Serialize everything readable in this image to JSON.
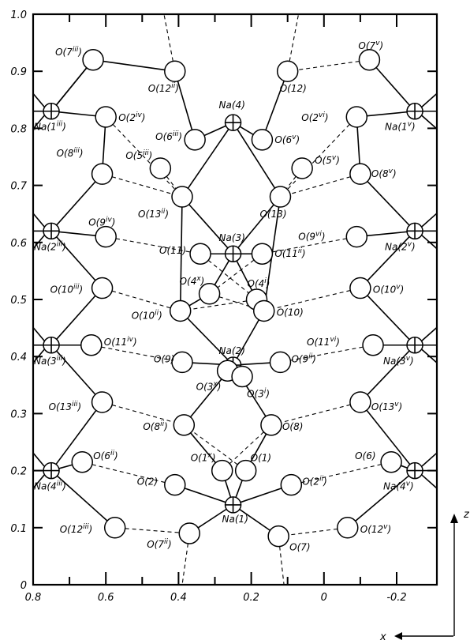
{
  "axes": {
    "x_label": "x",
    "z_label": "z",
    "x_ticks": [
      "0.8",
      "0.6",
      "0.4",
      "0.2",
      "0",
      "-0.2"
    ],
    "x_tick_values": [
      0.8,
      0.6,
      0.4,
      0.2,
      0,
      -0.2
    ],
    "z_ticks": [
      "0",
      "0.1",
      "0.2",
      "0.3",
      "0.4",
      "0.5",
      "0.6",
      "0.7",
      "0.8",
      "0.9",
      "1.0"
    ],
    "z_tick_values": [
      0,
      0.1,
      0.2,
      0.3,
      0.4,
      0.5,
      0.6,
      0.7,
      0.8,
      0.9,
      1.0
    ],
    "x_range": [
      0.8,
      -0.27
    ],
    "z_range": [
      0,
      1.0
    ]
  },
  "atoms": [
    {
      "id": "Na1iii",
      "type": "Na",
      "x": 0.75,
      "z": 0.83,
      "label": "Na(1",
      "sup": "iii",
      "close": ")"
    },
    {
      "id": "Na2iii",
      "type": "Na",
      "x": 0.75,
      "z": 0.62,
      "label": "Na(2",
      "sup": "iii",
      "close": ")"
    },
    {
      "id": "Na3iii",
      "type": "Na",
      "x": 0.75,
      "z": 0.42,
      "label": "Na(3",
      "sup": "iii",
      "close": ")"
    },
    {
      "id": "Na4iii",
      "type": "Na",
      "x": 0.75,
      "z": 0.2,
      "label": "Na(4",
      "sup": "iii",
      "close": ")"
    },
    {
      "id": "Na1v",
      "type": "Na",
      "x": -0.25,
      "z": 0.83,
      "label": "Na(1",
      "sup": "v",
      "close": ")"
    },
    {
      "id": "Na2v",
      "type": "Na",
      "x": -0.25,
      "z": 0.62,
      "label": "Na(2",
      "sup": "v",
      "close": ")"
    },
    {
      "id": "Na3v",
      "type": "Na",
      "x": -0.25,
      "z": 0.42,
      "label": "Na(3",
      "sup": "v",
      "close": ")"
    },
    {
      "id": "Na4v",
      "type": "Na",
      "x": -0.25,
      "z": 0.2,
      "label": "Na(4",
      "sup": "v",
      "close": ")"
    },
    {
      "id": "Na4",
      "type": "Na",
      "x": 0.25,
      "z": 0.81,
      "label": "Na(4)",
      "sup": "",
      "close": ""
    },
    {
      "id": "Na3",
      "type": "Na",
      "x": 0.25,
      "z": 0.58,
      "label": "Na(3)",
      "sup": "",
      "close": ""
    },
    {
      "id": "Na2",
      "type": "Na",
      "x": 0.25,
      "z": 0.385,
      "label": "Na(2)",
      "sup": "",
      "close": ""
    },
    {
      "id": "Na1",
      "type": "Na",
      "x": 0.25,
      "z": 0.14,
      "label": "Na(1)",
      "sup": "",
      "close": ""
    },
    {
      "id": "O7iii",
      "type": "O",
      "x": 0.635,
      "z": 0.92,
      "label": "O(7",
      "sup": "iii",
      "close": ")"
    },
    {
      "id": "O12ii",
      "type": "O",
      "x": 0.41,
      "z": 0.9,
      "label": "O(12",
      "sup": "ii",
      "close": ")"
    },
    {
      "id": "O12",
      "type": "O",
      "x": 0.1,
      "z": 0.9,
      "label": "O(12)",
      "sup": "",
      "close": ""
    },
    {
      "id": "O7v",
      "type": "O",
      "x": -0.125,
      "z": 0.92,
      "label": "O(7",
      "sup": "v",
      "close": ")"
    },
    {
      "id": "O2iv",
      "type": "O",
      "x": 0.6,
      "z": 0.82,
      "label": "O(2",
      "sup": "iv",
      "close": ")"
    },
    {
      "id": "O2vi",
      "type": "O",
      "x": -0.09,
      "z": 0.82,
      "label": "O(2",
      "sup": "vi",
      "close": ")"
    },
    {
      "id": "O6iii",
      "type": "O",
      "x": 0.355,
      "z": 0.78,
      "label": "O(6",
      "sup": "iii",
      "close": ")"
    },
    {
      "id": "O6v",
      "type": "O",
      "x": 0.17,
      "z": 0.78,
      "label": "O(6",
      "sup": "v",
      "close": ")"
    },
    {
      "id": "O5iii",
      "type": "O",
      "x": 0.45,
      "z": 0.73,
      "label": "O(5",
      "sup": "iii",
      "close": ")"
    },
    {
      "id": "O5v",
      "type": "O",
      "x": 0.06,
      "z": 0.73,
      "label": "O(5",
      "sup": "v",
      "close": ")"
    },
    {
      "id": "O8iii",
      "type": "O",
      "x": 0.61,
      "z": 0.72,
      "label": "O(8",
      "sup": "iii",
      "close": ")"
    },
    {
      "id": "O8v",
      "type": "O",
      "x": -0.1,
      "z": 0.72,
      "label": "O(8",
      "sup": "v",
      "close": ")"
    },
    {
      "id": "O13ii",
      "type": "O",
      "x": 0.39,
      "z": 0.68,
      "label": "O(13",
      "sup": "ii",
      "close": ")"
    },
    {
      "id": "O13",
      "type": "O",
      "x": 0.12,
      "z": 0.68,
      "label": "O(13)",
      "sup": "",
      "close": ""
    },
    {
      "id": "O9iv",
      "type": "O",
      "x": 0.6,
      "z": 0.61,
      "label": "O(9",
      "sup": "iv",
      "close": ")"
    },
    {
      "id": "O9vi",
      "type": "O",
      "x": -0.09,
      "z": 0.61,
      "label": "O(9",
      "sup": "vi",
      "close": ")"
    },
    {
      "id": "O11",
      "type": "O",
      "x": 0.34,
      "z": 0.58,
      "label": "O(11)",
      "sup": "",
      "close": ""
    },
    {
      "id": "O11ii",
      "type": "O",
      "x": 0.17,
      "z": 0.58,
      "label": "O(11",
      "sup": "ii",
      "close": ")"
    },
    {
      "id": "O4x",
      "type": "O",
      "x": 0.315,
      "z": 0.51,
      "label": "O(4",
      "sup": "x",
      "close": ")"
    },
    {
      "id": "O4i",
      "type": "O",
      "x": 0.185,
      "z": 0.5,
      "label": "O(4",
      "sup": "i",
      "close": ")"
    },
    {
      "id": "O10iii",
      "type": "O",
      "x": 0.61,
      "z": 0.52,
      "label": "O(10",
      "sup": "iii",
      "close": ")"
    },
    {
      "id": "O10v",
      "type": "O",
      "x": -0.1,
      "z": 0.52,
      "label": "O(10",
      "sup": "v",
      "close": ")"
    },
    {
      "id": "O10ii",
      "type": "O",
      "x": 0.395,
      "z": 0.48,
      "label": "O(10",
      "sup": "ii",
      "close": ")"
    },
    {
      "id": "O10",
      "type": "O",
      "x": 0.165,
      "z": 0.48,
      "label": "O(10)",
      "sup": "",
      "close": ""
    },
    {
      "id": "O11iv",
      "type": "O",
      "x": 0.64,
      "z": 0.42,
      "label": "O(11",
      "sup": "iv",
      "close": ")"
    },
    {
      "id": "O11vi",
      "type": "O",
      "x": -0.135,
      "z": 0.42,
      "label": "O(11",
      "sup": "vi",
      "close": ")"
    },
    {
      "id": "O9",
      "type": "O",
      "x": 0.39,
      "z": 0.39,
      "label": "O(9)",
      "sup": "",
      "close": ""
    },
    {
      "id": "O9ii",
      "type": "O",
      "x": 0.12,
      "z": 0.39,
      "label": "O(9",
      "sup": "ii",
      "close": ")"
    },
    {
      "id": "O3x",
      "type": "O",
      "x": 0.265,
      "z": 0.375,
      "label": "O(3",
      "sup": "x",
      "close": ")"
    },
    {
      "id": "O3i",
      "type": "O",
      "x": 0.225,
      "z": 0.365,
      "label": "O(3",
      "sup": "i",
      "close": ")"
    },
    {
      "id": "O13iii",
      "type": "O",
      "x": 0.61,
      "z": 0.32,
      "label": "O(13",
      "sup": "iii",
      "close": ")"
    },
    {
      "id": "O13v",
      "type": "O",
      "x": -0.1,
      "z": 0.32,
      "label": "O(13",
      "sup": "v",
      "close": ")"
    },
    {
      "id": "O8ii",
      "type": "O",
      "x": 0.385,
      "z": 0.28,
      "label": "O(8",
      "sup": "ii",
      "close": ")"
    },
    {
      "id": "O8",
      "type": "O",
      "x": 0.145,
      "z": 0.28,
      "label": "O(8)",
      "sup": "",
      "close": ""
    },
    {
      "id": "O6ii",
      "type": "O",
      "x": 0.665,
      "z": 0.215,
      "label": "O(6",
      "sup": "ii",
      "close": ")"
    },
    {
      "id": "O6",
      "type": "O",
      "x": -0.185,
      "z": 0.215,
      "label": "O(6)",
      "sup": "",
      "close": ""
    },
    {
      "id": "O1x",
      "type": "O",
      "x": 0.28,
      "z": 0.2,
      "label": "O(1",
      "sup": "x",
      "close": ")"
    },
    {
      "id": "O1",
      "type": "O",
      "x": 0.215,
      "z": 0.2,
      "label": "O(1)",
      "sup": "",
      "close": ""
    },
    {
      "id": "O2",
      "type": "O",
      "x": 0.41,
      "z": 0.175,
      "label": "O(2)",
      "sup": "",
      "close": ""
    },
    {
      "id": "O2ii",
      "type": "O",
      "x": 0.09,
      "z": 0.175,
      "label": "O(2",
      "sup": "ii",
      "close": ")"
    },
    {
      "id": "O12iii",
      "type": "O",
      "x": 0.575,
      "z": 0.1,
      "label": "O(12",
      "sup": "iii",
      "close": ")"
    },
    {
      "id": "O12v",
      "type": "O",
      "x": -0.065,
      "z": 0.1,
      "label": "O(12",
      "sup": "v",
      "close": ")"
    },
    {
      "id": "O7ii",
      "type": "O",
      "x": 0.37,
      "z": 0.09,
      "label": "O(7",
      "sup": "ii",
      "close": ")"
    },
    {
      "id": "O7",
      "type": "O",
      "x": 0.125,
      "z": 0.085,
      "label": "O(7)",
      "sup": "",
      "close": ""
    }
  ],
  "bonds": [
    [
      "Na1iii",
      "O7iii"
    ],
    [
      "Na1iii",
      "O2iv"
    ],
    [
      "O7iii",
      "Na1iii"
    ],
    [
      "O2iv",
      "O8iii"
    ],
    [
      "O8iii",
      "Na2iii"
    ],
    [
      "Na2iii",
      "O9iv"
    ],
    [
      "Na2iii",
      "O10iii"
    ],
    [
      "O10iii",
      "Na3iii"
    ],
    [
      "Na3iii",
      "O11iv"
    ],
    [
      "Na3iii",
      "O13iii"
    ],
    [
      "O13iii",
      "Na4iii"
    ],
    [
      "Na4iii",
      "O6ii"
    ],
    [
      "Na4iii",
      "O12iii"
    ],
    [
      "O7iii",
      "O12ii"
    ],
    [
      "Na1v",
      "O7v"
    ],
    [
      "Na1v",
      "O2vi"
    ],
    [
      "O2vi",
      "O8v"
    ],
    [
      "O8v",
      "Na2v"
    ],
    [
      "Na2v",
      "O9vi"
    ],
    [
      "Na2v",
      "O10v"
    ],
    [
      "O10v",
      "Na3v"
    ],
    [
      "Na3v",
      "O11vi"
    ],
    [
      "Na3v",
      "O13v"
    ],
    [
      "O13v",
      "Na4v"
    ],
    [
      "Na4v",
      "O6"
    ],
    [
      "Na4v",
      "O12v"
    ],
    [
      "O12ii",
      "O6iii"
    ],
    [
      "O12",
      "O6v"
    ],
    [
      "Na4",
      "O6iii"
    ],
    [
      "Na4",
      "O6v"
    ],
    [
      "Na4",
      "O13ii"
    ],
    [
      "Na4",
      "O13"
    ],
    [
      "O13ii",
      "Na3"
    ],
    [
      "O13",
      "Na3"
    ],
    [
      "Na3",
      "O11"
    ],
    [
      "Na3",
      "O11ii"
    ],
    [
      "Na3",
      "O4x"
    ],
    [
      "Na3",
      "O4i"
    ],
    [
      "O4x",
      "O10ii"
    ],
    [
      "O4i",
      "O10"
    ],
    [
      "O10ii",
      "Na2"
    ],
    [
      "O10",
      "Na2"
    ],
    [
      "Na2",
      "O9"
    ],
    [
      "Na2",
      "O9ii"
    ],
    [
      "Na2",
      "O3x"
    ],
    [
      "Na2",
      "O3i"
    ],
    [
      "Na2",
      "O8ii"
    ],
    [
      "Na2",
      "O8"
    ],
    [
      "O8ii",
      "O1x"
    ],
    [
      "O8",
      "O1"
    ],
    [
      "O1x",
      "Na1"
    ],
    [
      "O1",
      "Na1"
    ],
    [
      "Na1",
      "O2"
    ],
    [
      "Na1",
      "O2ii"
    ],
    [
      "Na1",
      "O7ii"
    ],
    [
      "Na1",
      "O7"
    ],
    [
      "O13ii",
      "O10ii"
    ],
    [
      "O13",
      "O10"
    ]
  ],
  "hbonds": [
    [
      "O7iii",
      "O12ii"
    ],
    [
      "O2iv",
      "O13ii"
    ],
    [
      "O8iii",
      "O13ii"
    ],
    [
      "O9iv",
      "O11"
    ],
    [
      "O10iii",
      "O10ii"
    ],
    [
      "O11iv",
      "O9"
    ],
    [
      "O13iii",
      "O8ii"
    ],
    [
      "O6ii",
      "O2"
    ],
    [
      "O12iii",
      "O7ii"
    ],
    [
      "O7v",
      "O12"
    ],
    [
      "O2vi",
      "O13"
    ],
    [
      "O8v",
      "O13"
    ],
    [
      "O9vi",
      "O11ii"
    ],
    [
      "O10v",
      "O10"
    ],
    [
      "O11vi",
      "O9ii"
    ],
    [
      "O13v",
      "O8"
    ],
    [
      "O6",
      "O2ii"
    ],
    [
      "O12v",
      "O7"
    ],
    [
      "O5iii",
      "O13ii"
    ],
    [
      "O5v",
      "O13"
    ],
    [
      "O11",
      "O4i"
    ],
    [
      "O11ii",
      "O4x"
    ],
    [
      "O4x",
      "O10"
    ],
    [
      "O4i",
      "O10ii"
    ],
    [
      "O1x",
      "O8"
    ],
    [
      "O1",
      "O8ii"
    ]
  ],
  "hbonds_offpage": [
    {
      "from": "O12ii",
      "to_x": 0.44,
      "to_z": 1.0
    },
    {
      "from": "O12",
      "to_x": 0.07,
      "to_z": 1.0
    },
    {
      "from": "O7ii",
      "to_x": 0.39,
      "to_z": 0.0
    },
    {
      "from": "O7",
      "to_x": 0.11,
      "to_z": 0.0
    }
  ]
}
